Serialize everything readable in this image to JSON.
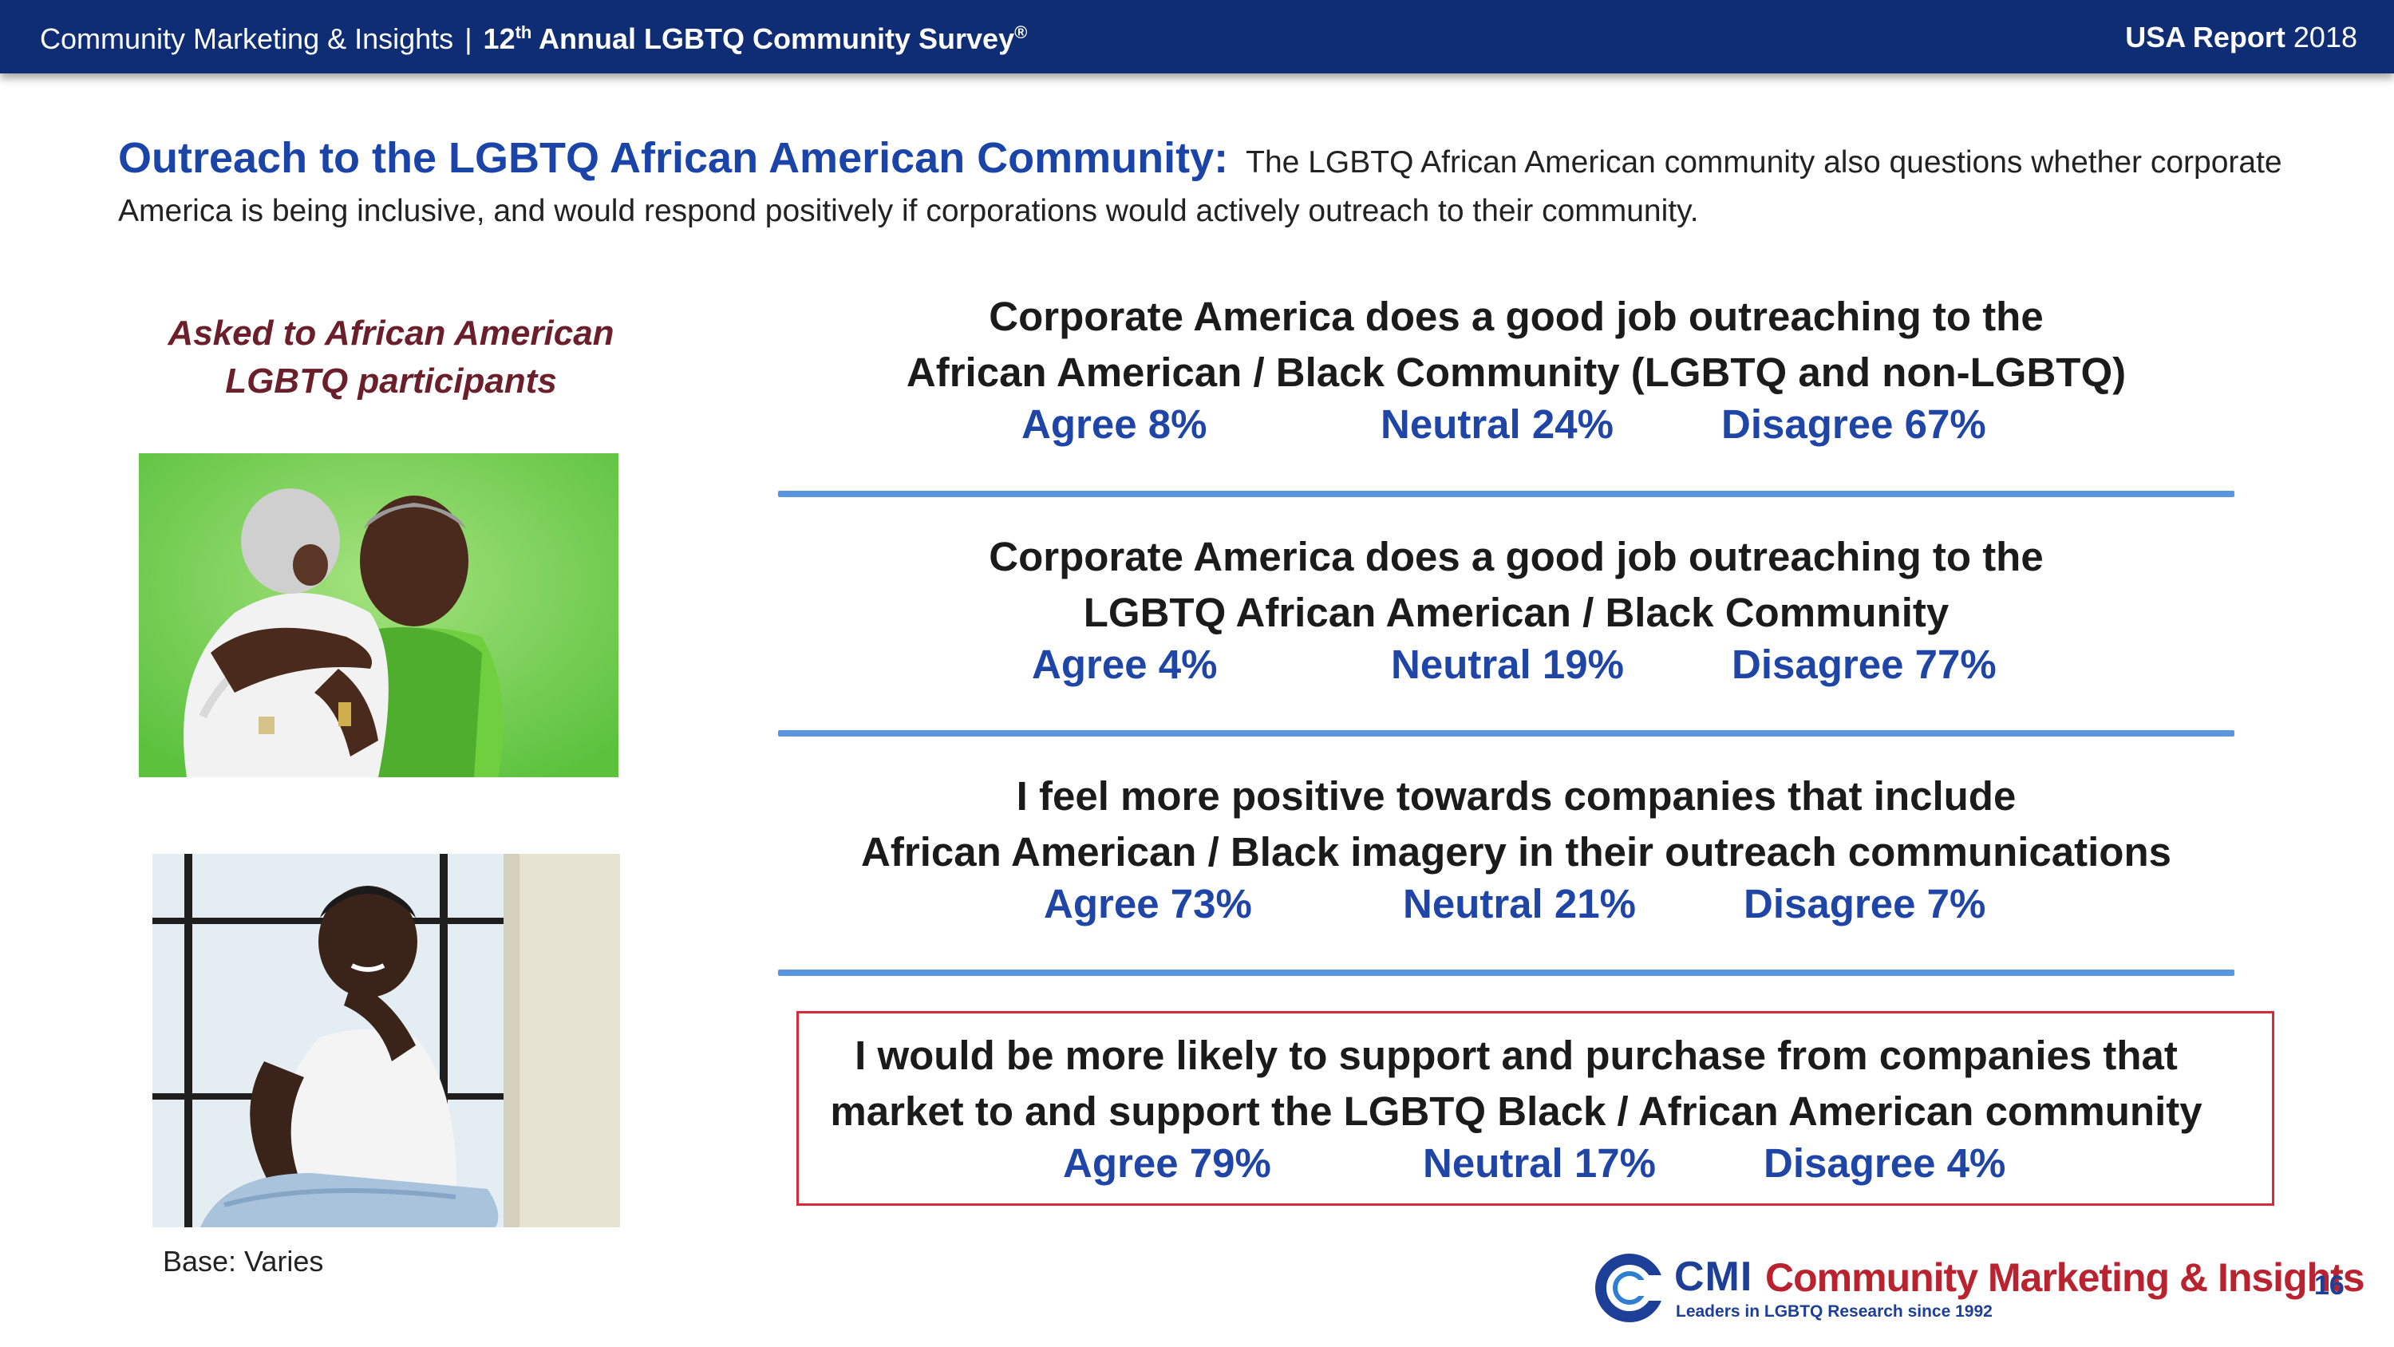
{
  "header": {
    "org": "Community Marketing & Insights",
    "separator": "|",
    "survey_prefix": "12",
    "survey_sup": "th",
    "survey_title": "Annual LGBTQ Community Survey",
    "survey_mark": "®",
    "report_bold": "USA Report",
    "report_year": "2018",
    "bar_color": "#0f2d74"
  },
  "intro": {
    "heading": "Outreach to the LGBTQ African American Community:",
    "text": "The LGBTQ African American community also questions whether corporate America is being inclusive, and would respond positively if corporations would actively outreach to their community."
  },
  "sidebar": {
    "asked_line1": "Asked to African American",
    "asked_line2": "LGBTQ participants",
    "base": "Base: Varies"
  },
  "statements": [
    {
      "line1": "Corporate America does a good job outreaching to the",
      "line2": "African American / Black Community  (LGBTQ and non-LGBTQ)",
      "agree": "Agree 8%",
      "neutral": "Neutral 24%",
      "disagree": "Disagree  67%"
    },
    {
      "line1": "Corporate America does a good job outreaching to the",
      "line2": "LGBTQ African American / Black Community",
      "agree": "Agree 4%",
      "neutral": "Neutral 19%",
      "disagree": "Disagree  77%"
    },
    {
      "line1": "I feel more positive towards companies that include",
      "line2": "African American / Black imagery in their outreach communications",
      "agree": "Agree 73%",
      "neutral": "Neutral 21%",
      "disagree": "Disagree  7%"
    },
    {
      "line1": "I would be more likely to support and purchase from companies that",
      "line2": "market to and support the LGBTQ  Black / African American community",
      "agree": "Agree 79%",
      "neutral": "Neutral 17%",
      "disagree": "Disagree  4%"
    }
  ],
  "footer": {
    "logo_abbr": "CMI",
    "logo_name": "Community Marketing & Insights",
    "logo_tagline": "Leaders in LGBTQ Research since 1992",
    "page_number": "16"
  },
  "colors": {
    "accent_blue": "#1f45a6",
    "rule_blue": "#5b95df",
    "highlight_red": "#d92a3a",
    "asked_maroon": "#6b1f2a"
  }
}
